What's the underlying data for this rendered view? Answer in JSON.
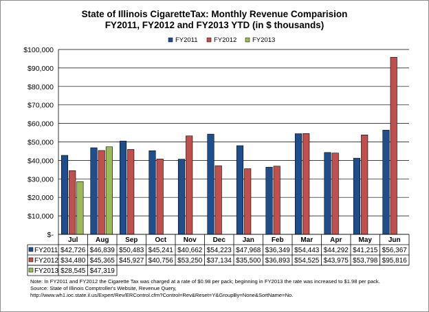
{
  "colors": {
    "fy2011": "#1f4e8c",
    "fy2012": "#c0504d",
    "fy2013": "#9bbb59",
    "grid": "#000000",
    "border": "#8c8c8c"
  },
  "chart_data": {
    "type": "bar",
    "title": "State of Illinois CigaretteTax: Monthly Revenue Comparision",
    "subtitle": "FY2011, FY2012 and FY2013 YTD  (in $ thousands)",
    "categories": [
      "Jul",
      "Aug",
      "Sep",
      "Oct",
      "Nov",
      "Dec",
      "Jan",
      "Feb",
      "Mar",
      "Apr",
      "May",
      "Jun"
    ],
    "ylim": [
      0,
      100000
    ],
    "yticks": [
      0,
      10000,
      20000,
      30000,
      40000,
      50000,
      60000,
      70000,
      80000,
      90000,
      100000
    ],
    "ytick_labels": [
      "$-",
      "$10,000",
      "$20,000",
      "$30,000",
      "$40,000",
      "$50,000",
      "$60,000",
      "$70,000",
      "$80,000",
      "$90,000",
      "$100,000"
    ],
    "grid": true,
    "legend_position": "top-right",
    "series": [
      {
        "name": "FY2011",
        "values": [
          42726,
          46839,
          50483,
          45241,
          40662,
          54223,
          47968,
          36349,
          54443,
          44292,
          41215,
          56367
        ],
        "labels": [
          "$42,726",
          "$46,839",
          "$50,483",
          "$45,241",
          "$40,662",
          "$54,223",
          "$47,968",
          "$36,349",
          "$54,443",
          "$44,292",
          "$41,215",
          "$56,367"
        ]
      },
      {
        "name": "FY2012",
        "values": [
          34480,
          45365,
          45927,
          40756,
          53250,
          37134,
          35500,
          36893,
          54525,
          43975,
          53798,
          95816
        ],
        "labels": [
          "$34,480",
          "$45,365",
          "$45,927",
          "$40,756",
          "$53,250",
          "$37,134",
          "$35,500",
          "$36,893",
          "$54,525",
          "$43,975",
          "$53,798",
          "$95,816"
        ]
      },
      {
        "name": "FY2013",
        "values": [
          28545,
          47319,
          null,
          null,
          null,
          null,
          null,
          null,
          null,
          null,
          null,
          null
        ],
        "labels": [
          "$28,545",
          "$47,319",
          "",
          "",
          "",
          "",
          "",
          "",
          "",
          "",
          "",
          ""
        ]
      }
    ],
    "notes": [
      "Note: In FY2011 and FY2012 the Cigarette Tax was charged at a rate of $0.98 per pack; beginning in FY2013 the rate was increased to $1.98 per pack.",
      "Source: State of Illinois Comptroller's Website, Revenue Query,",
      "http://www.wh1.ioc.state.il.us/Expert/Rev/ERControl.cfm?Control=Rev&Reset=Y&GroupBy=None&SortName=No."
    ]
  }
}
